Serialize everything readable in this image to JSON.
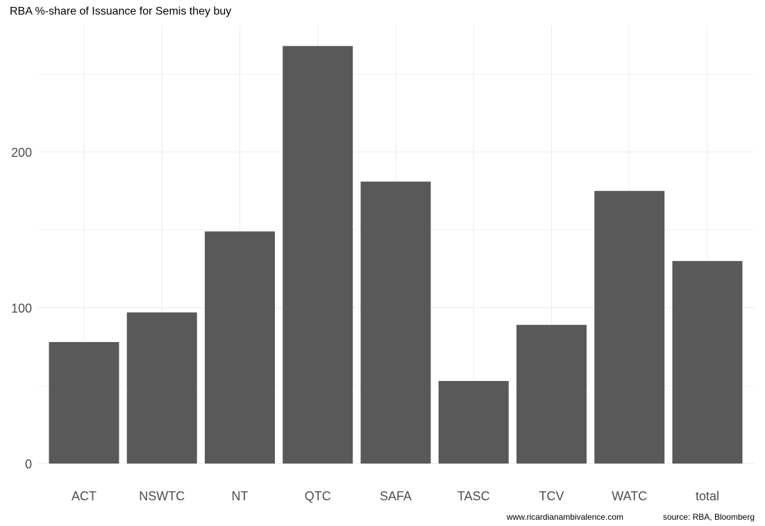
{
  "chart_data": {
    "type": "bar",
    "title": "RBA %-share of Issuance for Semis they buy",
    "xlabel": "",
    "ylabel": "",
    "categories": [
      "ACT",
      "NSWTC",
      "NT",
      "QTC",
      "SAFA",
      "TASC",
      "TCV",
      "WATC",
      "total"
    ],
    "values": [
      78,
      97,
      149,
      268,
      181,
      53,
      89,
      175,
      130
    ],
    "ylim": [
      0,
      280
    ],
    "yticks": [
      0,
      100,
      200
    ],
    "grid": true,
    "legend": "none",
    "bar_color": "#595959"
  },
  "captions": {
    "website": "www.ricardianambivalence.com",
    "source": "source: RBA, Bloomberg"
  }
}
